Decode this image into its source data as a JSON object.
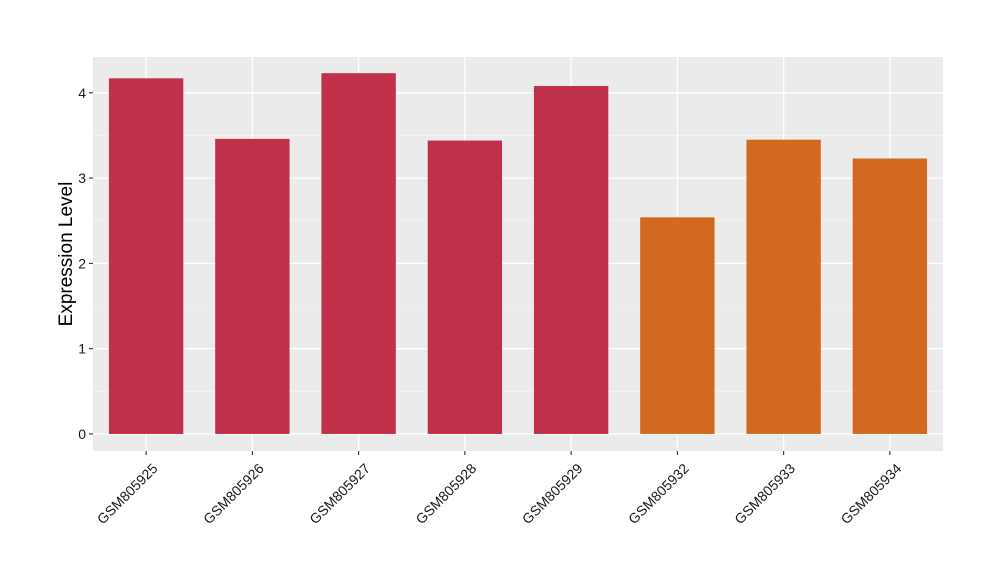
{
  "chart_data": {
    "type": "bar",
    "title": "",
    "xlabel": "",
    "ylabel": "Expression Level",
    "ylim": [
      -0.2,
      4.42
    ],
    "yticks": [
      0,
      1,
      2,
      3,
      4
    ],
    "ytick_labels": [
      "0",
      "1",
      "2",
      "3",
      "4"
    ],
    "grid": true,
    "legend": "none",
    "categories": [
      "GSM805925",
      "GSM805926",
      "GSM805927",
      "GSM805928",
      "GSM805929",
      "GSM805932",
      "GSM805933",
      "GSM805934"
    ],
    "values": [
      4.17,
      3.46,
      4.23,
      3.44,
      4.08,
      2.54,
      3.45,
      3.23
    ],
    "bar_colors": [
      "#c1304a",
      "#c1304a",
      "#c1304a",
      "#c1304a",
      "#c1304a",
      "#d2691e",
      "#d2691e",
      "#d2691e"
    ]
  },
  "colors": {
    "panel_background": "#ebebeb",
    "grid_major": "#ffffff",
    "grid_minor": "#f5f5f5",
    "group_a": "#c1304a",
    "group_b": "#d2691e"
  }
}
